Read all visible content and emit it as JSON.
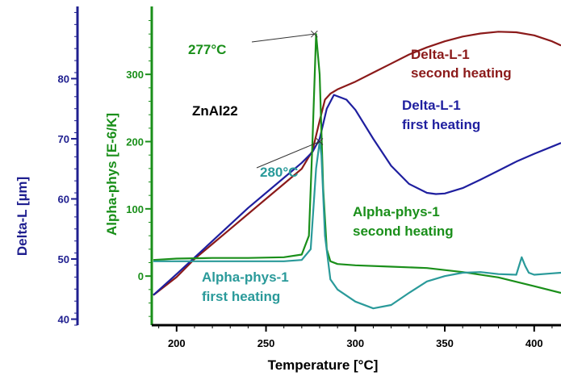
{
  "chart_data": {
    "type": "line",
    "title": "ZnAl22",
    "xlabel": "Temperature [°C]",
    "xlim": [
      187,
      415
    ],
    "x_ticks": [
      200,
      250,
      300,
      350,
      400
    ],
    "left_axis": {
      "label": "Delta-L [µm]",
      "color": "#1f1f8f",
      "ylim": [
        39,
        92
      ],
      "ticks": [
        40,
        50,
        60,
        70,
        80
      ]
    },
    "right_axis": {
      "label": "Alpha-phys  [E-6/K]",
      "color": "#1a8f1a",
      "ylim": [
        -73,
        401
      ],
      "ticks": [
        0,
        100,
        200,
        300
      ]
    },
    "series": [
      {
        "name": "Delta-L-1 second heating",
        "color": "#8b1a1a",
        "axis": "left",
        "x": [
          187,
          200,
          210,
          220,
          230,
          240,
          250,
          260,
          270,
          276,
          280,
          283,
          286,
          290,
          300,
          310,
          320,
          330,
          340,
          350,
          360,
          370,
          380,
          390,
          400,
          410,
          415
        ],
        "y": [
          44,
          47,
          50,
          52.5,
          55,
          57.5,
          60,
          62.5,
          65,
          68,
          73,
          76.5,
          77.5,
          78.2,
          79.5,
          81,
          82.5,
          84,
          85.2,
          86.2,
          87,
          87.5,
          87.8,
          87.7,
          87.2,
          86.2,
          85.5
        ]
      },
      {
        "name": "Delta-L-1 first heating",
        "color": "#1f1f9f",
        "axis": "left",
        "x": [
          187,
          200,
          220,
          240,
          260,
          270,
          276,
          280,
          284,
          288,
          295,
          300,
          310,
          320,
          330,
          340,
          345,
          350,
          360,
          370,
          380,
          390,
          400,
          410,
          415
        ],
        "y": [
          44,
          47.5,
          53,
          58.5,
          63.5,
          66,
          67.8,
          70,
          75,
          77.3,
          76.5,
          74.8,
          70,
          65.5,
          62.5,
          61,
          60.8,
          60.9,
          61.8,
          63.2,
          64.7,
          66.2,
          67.5,
          68.7,
          69.3
        ]
      },
      {
        "name": "Alpha-phys-1 second heating",
        "color": "#1a8f1a",
        "axis": "right",
        "x": [
          187,
          200,
          220,
          240,
          260,
          270,
          274,
          276,
          278,
          280,
          282,
          284,
          286,
          290,
          300,
          320,
          340,
          360,
          380,
          400,
          415
        ],
        "y": [
          24,
          26,
          27,
          27,
          28,
          32,
          60,
          200,
          360,
          300,
          130,
          40,
          22,
          18,
          16,
          14,
          12,
          6,
          -2,
          -15,
          -25
        ]
      },
      {
        "name": "Alpha-phys-1 first heating",
        "color": "#2a9a9a",
        "axis": "right",
        "x": [
          187,
          200,
          220,
          240,
          260,
          270,
          275,
          278,
          280,
          281,
          283,
          286,
          290,
          300,
          310,
          320,
          330,
          340,
          350,
          360,
          370,
          380,
          390,
          393,
          395,
          397,
          400,
          410,
          415
        ],
        "y": [
          22,
          22,
          22,
          22,
          22,
          24,
          40,
          160,
          200,
          180,
          60,
          -5,
          -20,
          -38,
          -48,
          -43,
          -25,
          -8,
          0,
          5,
          6,
          3,
          2,
          28,
          15,
          5,
          2,
          4,
          5
        ]
      }
    ],
    "annotations": {
      "peak_277": "277°C",
      "peak_280": "280°C",
      "dl_second_1": "Delta-L-1",
      "dl_second_2": "second heating",
      "dl_first_1": "Delta-L-1",
      "dl_first_2": "first heating",
      "ap_second_1": "Alpha-phys-1",
      "ap_second_2": "second heating",
      "ap_first_1": "Alpha-phys-1",
      "ap_first_2": "first  heating"
    },
    "annotation_colors": {
      "peak_277": "#1a8f1a",
      "peak_280": "#2a9a9a",
      "dl_second": "#8b1a1a",
      "dl_first": "#1f1f9f",
      "ap_second": "#1a8f1a",
      "ap_first": "#2a9a9a",
      "title": "#000000"
    }
  }
}
